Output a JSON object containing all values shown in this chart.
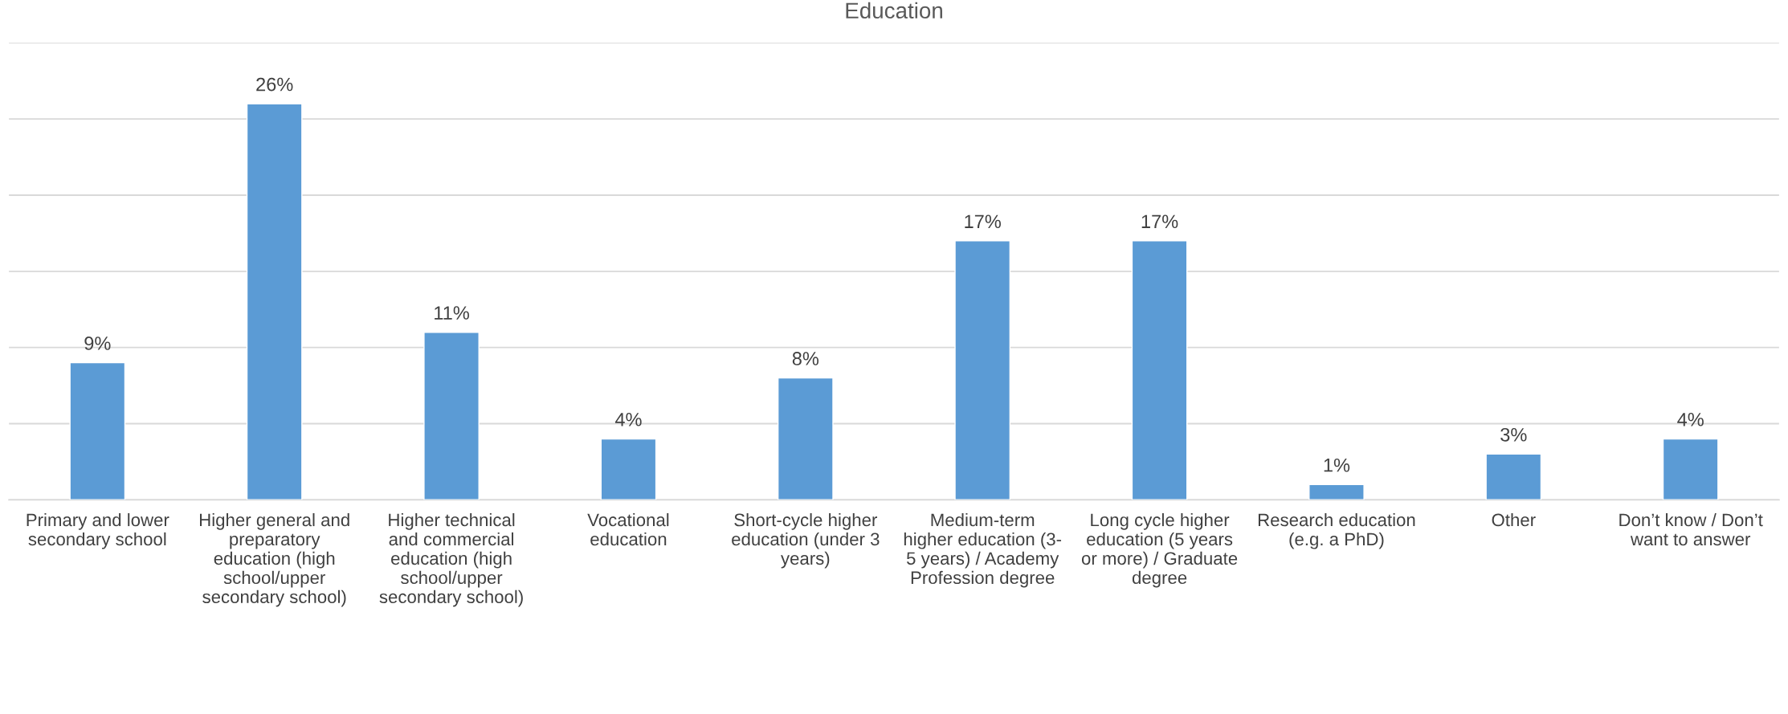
{
  "chart_data": {
    "type": "bar",
    "title": "Education",
    "categories": [
      "Primary and lower\nsecondary school",
      "Higher general and\npreparatory\neducation (high\nschool/upper\nsecondary school)",
      "Higher technical\nand commercial\neducation (high\nschool/upper\nsecondary school)",
      "Vocational\neducation",
      "Short-cycle higher\neducation (under 3\nyears)",
      "Medium-term\nhigher education (3-\n5 years) / Academy\nProfession degree",
      "Long cycle higher\neducation (5 years\nor more) / Graduate\ndegree",
      "Research education\n(e.g. a PhD)",
      "Other",
      "Don’t know / Don’t\nwant to answer"
    ],
    "values": [
      9,
      26,
      11,
      4,
      8,
      17,
      17,
      1,
      3,
      4
    ],
    "value_labels": [
      "9%",
      "26%",
      "11%",
      "4%",
      "8%",
      "17%",
      "17%",
      "1%",
      "3%",
      "4%"
    ],
    "color": "#5b9bd5",
    "ylim": [
      0,
      30
    ],
    "yticks": [
      {
        "value": 0,
        "label": null
      },
      {
        "value": 5,
        "label": null
      },
      {
        "value": 10,
        "label": null
      },
      {
        "value": 15,
        "label": null
      },
      {
        "value": 20,
        "label": null
      },
      {
        "value": 25,
        "label": null
      },
      {
        "value": 30,
        "label": null
      }
    ],
    "tick_labels": "x",
    "grid": "y"
  }
}
